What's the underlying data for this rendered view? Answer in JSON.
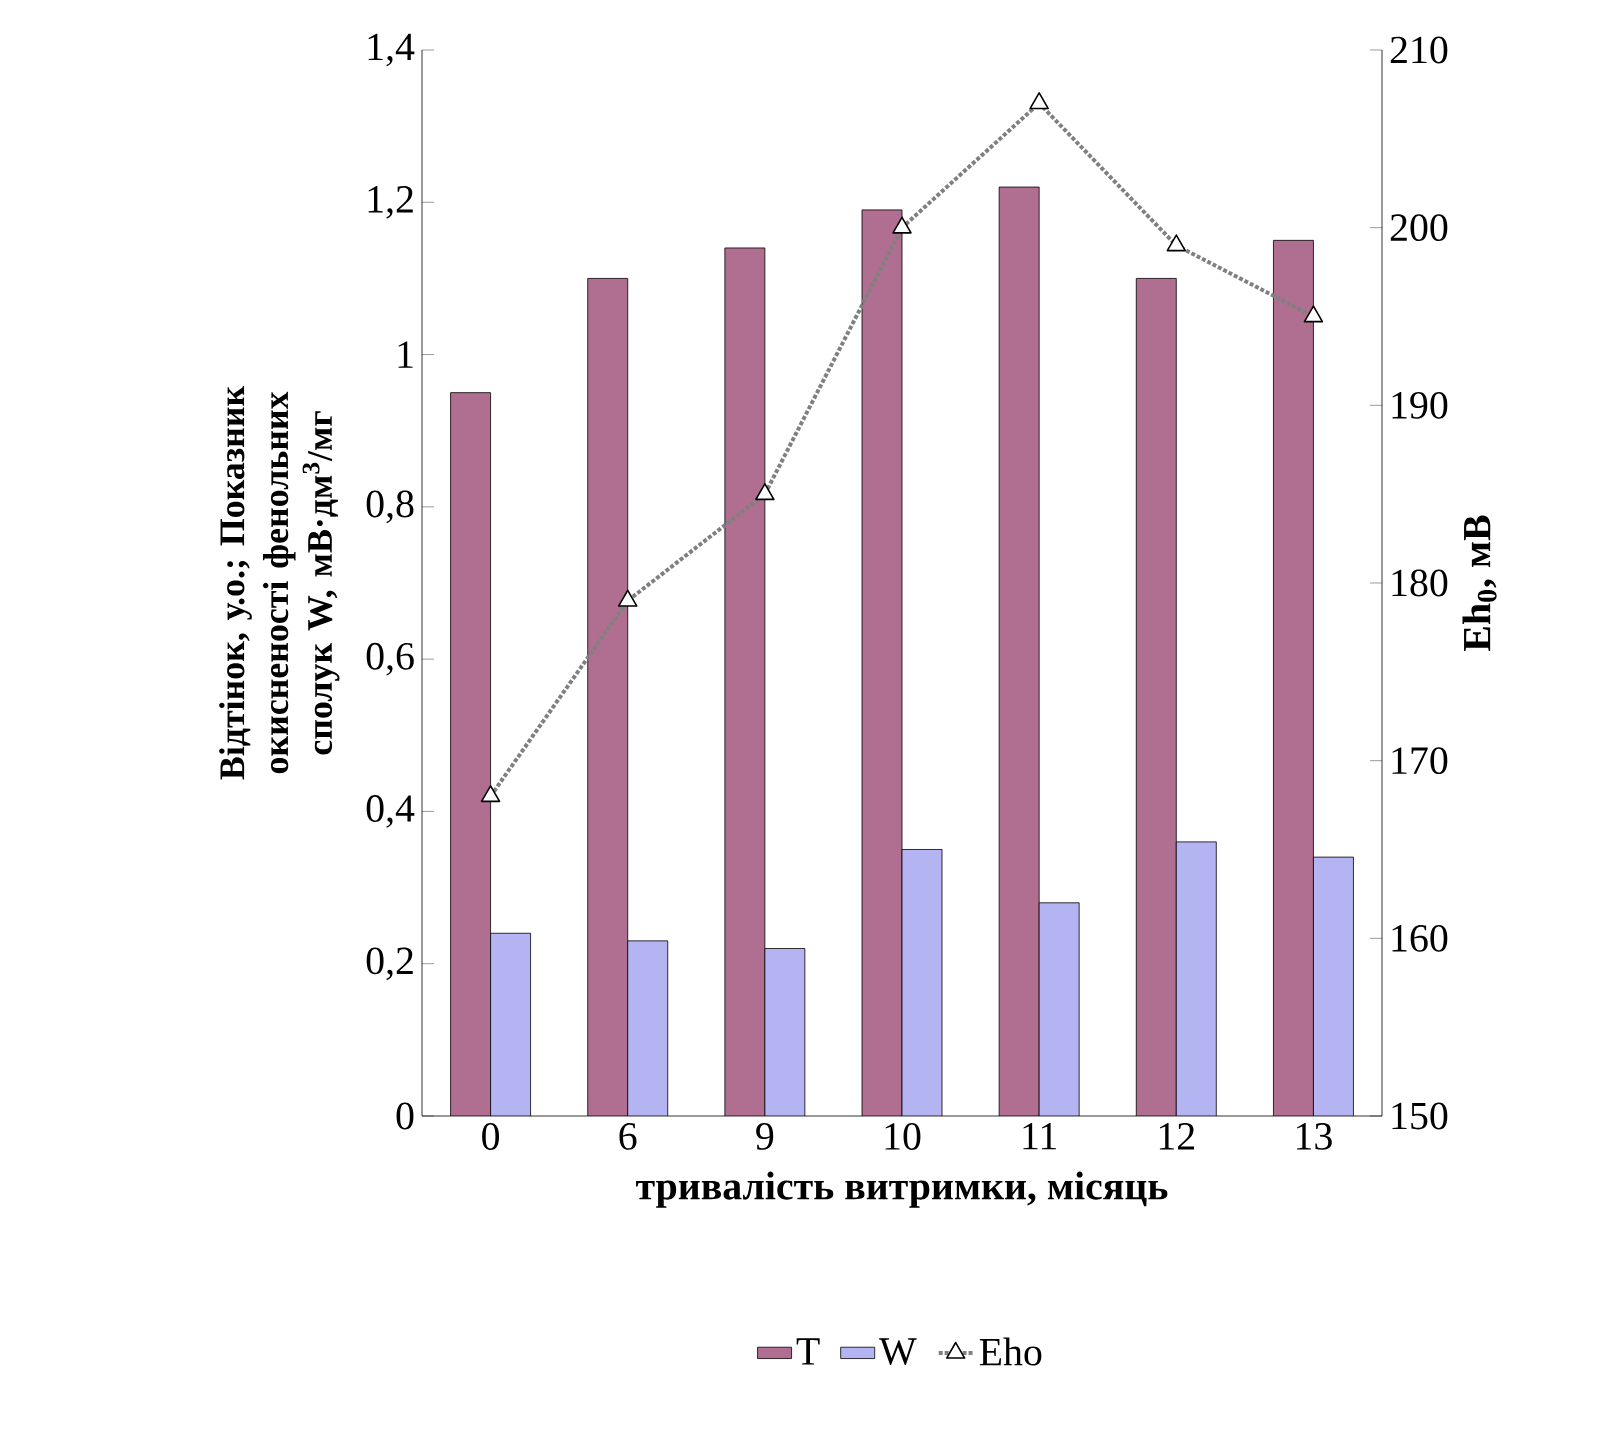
{
  "chart_data": {
    "type": "bar",
    "xlabel": "тривалість витримки, місяць",
    "ylabel": "Відтінок, у.о.; Показник окисненості фенольних сполук W, мВ·дм$^{3}$/мг",
    "y2label": "Eh$_{0}$, мВ",
    "categories": [
      "0",
      "6",
      "9",
      "10",
      "11",
      "12",
      "13"
    ],
    "series": [
      {
        "name": "T",
        "color": "#b06e90",
        "values": [
          0.95,
          1.1,
          1.14,
          1.19,
          1.22,
          1.1,
          1.15
        ]
      },
      {
        "name": "W",
        "color": "#b4b4f2",
        "values": [
          0.24,
          0.23,
          0.22,
          0.35,
          0.28,
          0.36,
          0.34
        ]
      },
      {
        "name": "Eho",
        "type": "line",
        "axis": "y2",
        "color": "#808080",
        "marker": "triangle",
        "line_style": "dotted",
        "values": [
          168,
          179,
          185,
          200,
          207,
          199,
          195
        ]
      }
    ],
    "ylim": [
      0,
      1.4
    ],
    "yticks": [
      0,
      {
        "value": 0.2,
        "label": "0,2"
      },
      {
        "value": 0.4,
        "label": "0,4"
      },
      {
        "value": 0.6,
        "label": "0,6"
      },
      {
        "value": 0.8,
        "label": "0,8"
      },
      1,
      {
        "value": 1.2,
        "label": "1,2"
      },
      {
        "value": 1.4,
        "label": "1,4"
      }
    ],
    "y2lim": [
      150,
      210
    ],
    "y2ticks": [
      150,
      160,
      170,
      180,
      190,
      200,
      210
    ],
    "grid": false,
    "legend": "bottom"
  }
}
